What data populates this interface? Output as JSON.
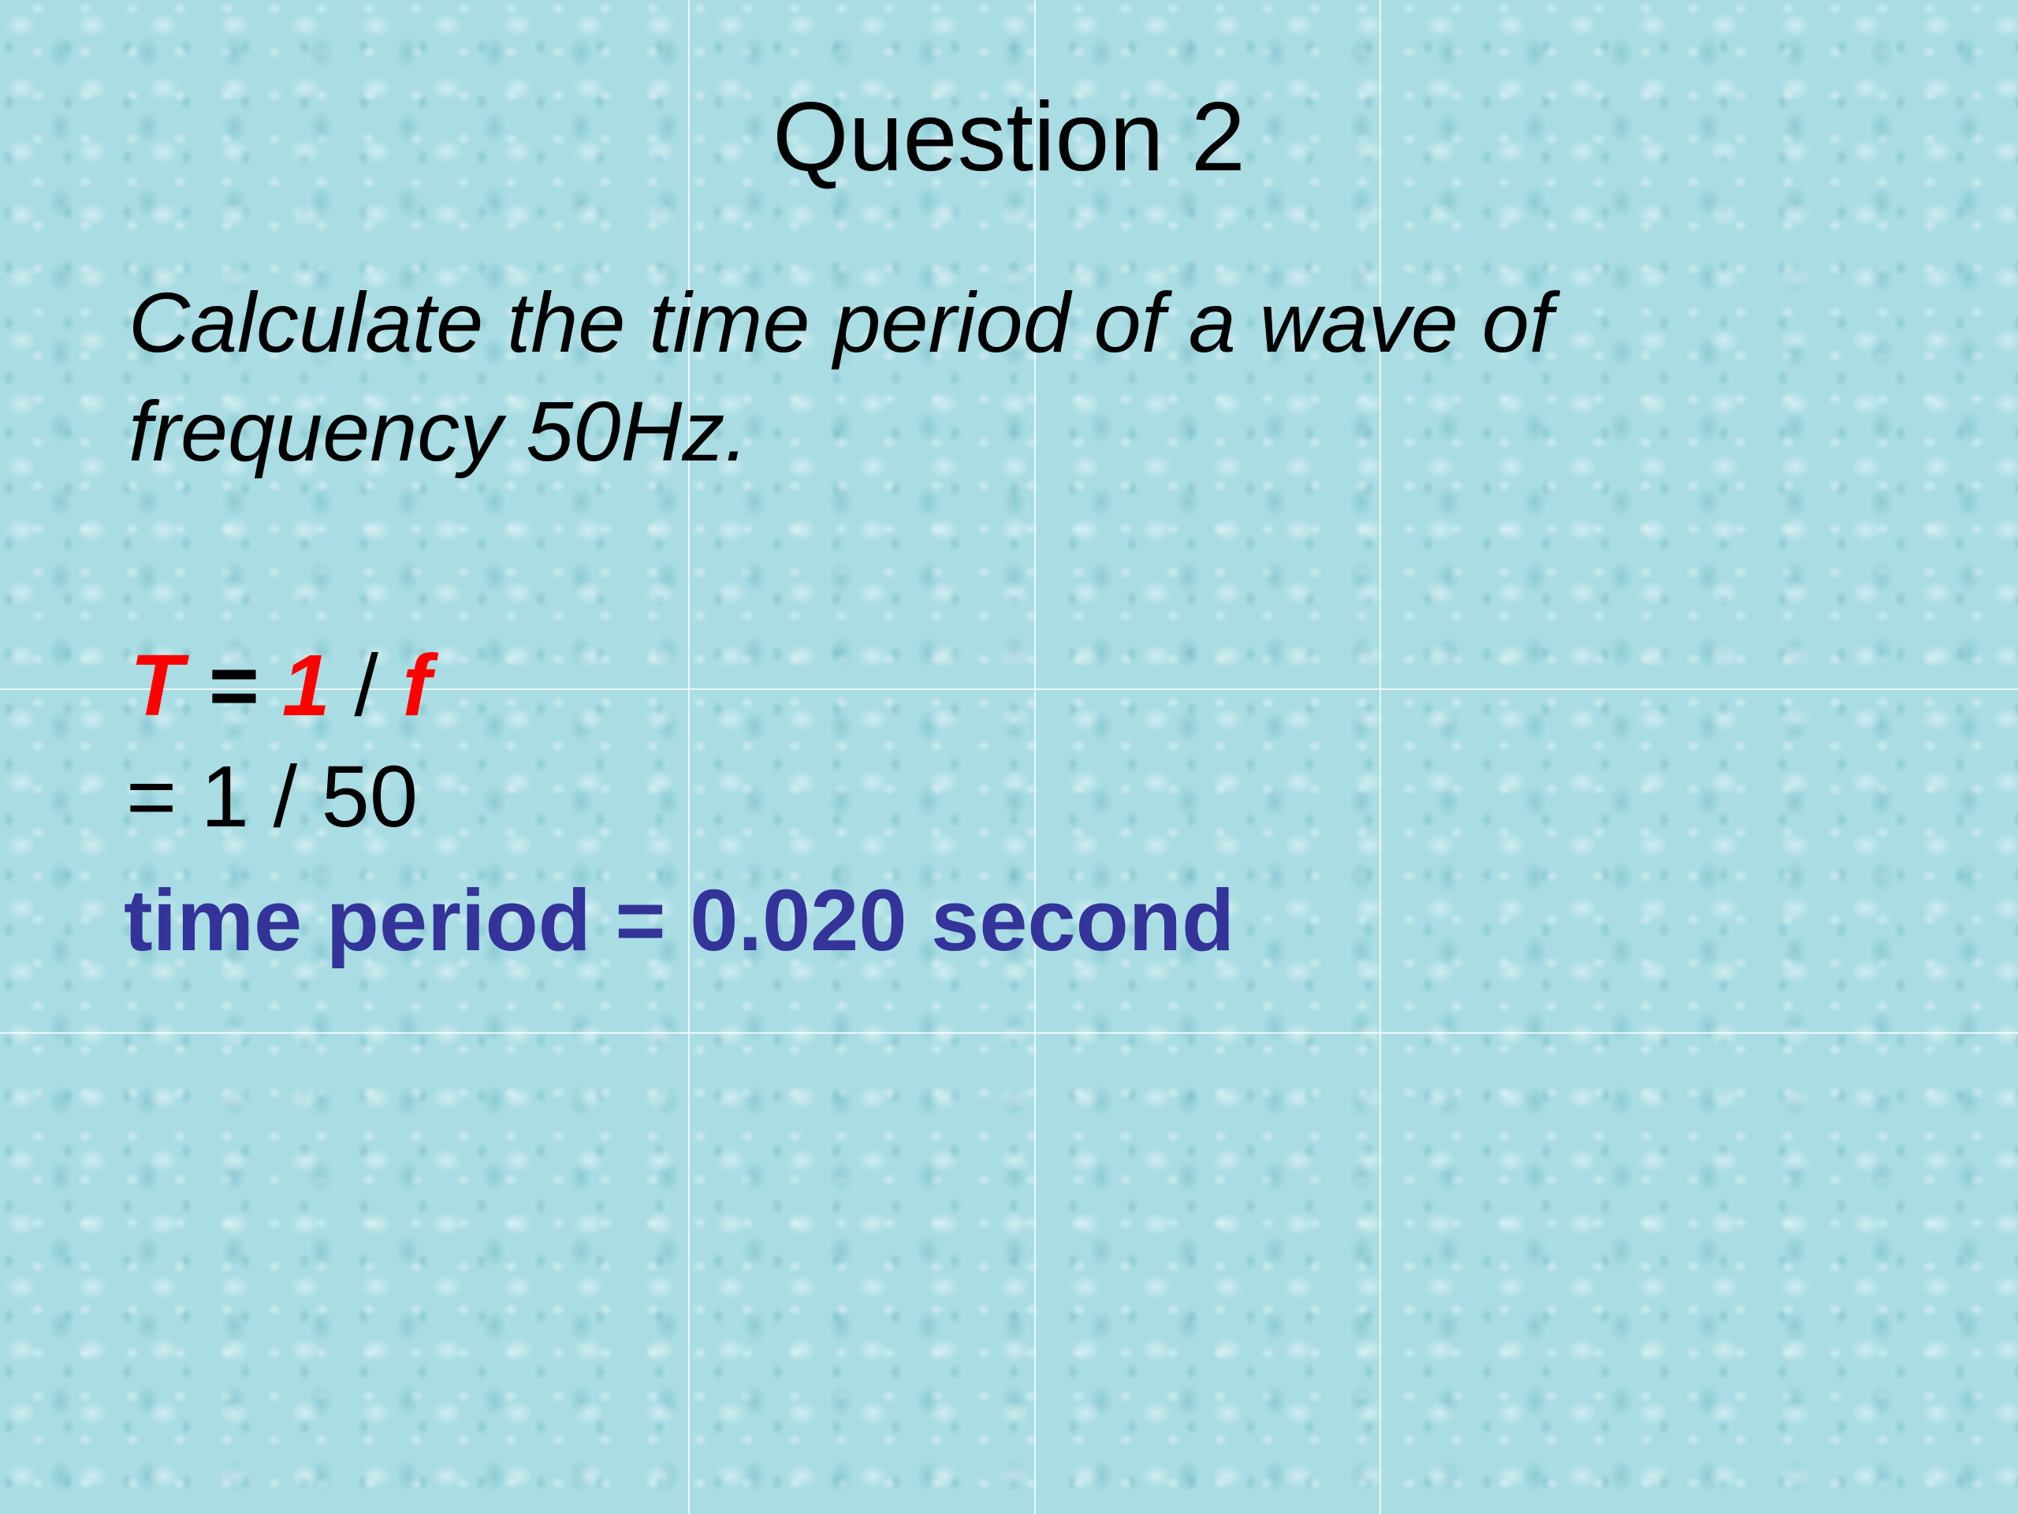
{
  "slide": {
    "title": "Question 2",
    "question_lines": [
      "Calculate the time period of a wave of",
      "frequency 50Hz."
    ],
    "formula": {
      "T": "T",
      "eq": " = ",
      "one": "1",
      "slash": " / ",
      "f": "f"
    },
    "substitution": "= 1 / 50",
    "answer": "time period = 0.020 second"
  },
  "colors": {
    "background": "#a9dde3",
    "highlight": "#ff0000",
    "answer": "#333399"
  }
}
